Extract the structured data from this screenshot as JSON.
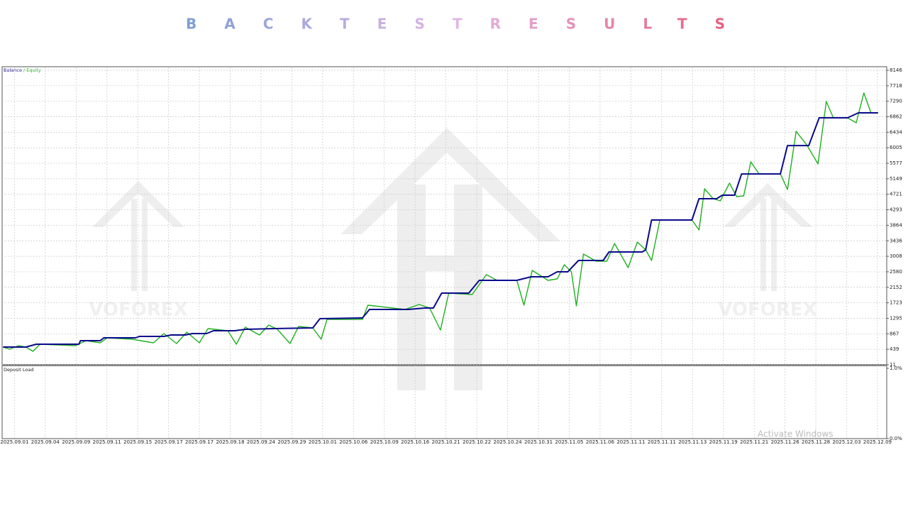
{
  "header": {
    "title": "BACKTESTRESULTS"
  },
  "chart_data": {
    "type": "line",
    "legend_separator": "/",
    "xlim": [
      -0.4,
      28.3
    ],
    "xticks": [
      {
        "value": 0,
        "label": "2025.09.01"
      },
      {
        "value": 1,
        "label": "2025.09.04"
      },
      {
        "value": 2,
        "label": "2025.09.09"
      },
      {
        "value": 3,
        "label": "2025.09.11"
      },
      {
        "value": 4,
        "label": "2025.09.15"
      },
      {
        "value": 5,
        "label": "2025.09.17"
      },
      {
        "value": 6,
        "label": "2025.09.17"
      },
      {
        "value": 7,
        "label": "2025.09.18"
      },
      {
        "value": 8,
        "label": "2025.09.24"
      },
      {
        "value": 9,
        "label": "2025.09.29"
      },
      {
        "value": 10,
        "label": "2025.10.01"
      },
      {
        "value": 11,
        "label": "2025.10.06"
      },
      {
        "value": 12,
        "label": "2025.10.09"
      },
      {
        "value": 13,
        "label": "2025.10.16"
      },
      {
        "value": 14,
        "label": "2025.10.21"
      },
      {
        "value": 15,
        "label": "2025.10.22"
      },
      {
        "value": 16,
        "label": "2025.10.24"
      },
      {
        "value": 17,
        "label": "2025.10.31"
      },
      {
        "value": 18,
        "label": "2025.11.05"
      },
      {
        "value": 19,
        "label": "2025.11.06"
      },
      {
        "value": 20,
        "label": "2025.11.11"
      },
      {
        "value": 21,
        "label": "2025.11.11"
      },
      {
        "value": 22,
        "label": "2025.11.13"
      },
      {
        "value": 23,
        "label": "2025.11.19"
      },
      {
        "value": 24,
        "label": "2025.11.21"
      },
      {
        "value": 25,
        "label": "2025.11.26"
      },
      {
        "value": 26,
        "label": "2025.11.28"
      },
      {
        "value": 27,
        "label": "2025.12.03"
      },
      {
        "value": 28,
        "label": "2025.12.09"
      }
    ],
    "ylim": [
      11,
      8146
    ],
    "yticks": [
      11,
      439,
      867,
      1295,
      1723,
      2152,
      2580,
      3008,
      3436,
      3864,
      4293,
      4721,
      5149,
      5577,
      6005,
      6434,
      6862,
      7290,
      7718,
      8146
    ],
    "grid": true,
    "series": [
      {
        "name": "Balance",
        "color": "#0a0a8c",
        "x": [
          -0.37,
          0.37,
          0.71,
          2.09,
          2.14,
          2.78,
          2.9,
          3.93,
          4.05,
          4.85,
          5.08,
          5.54,
          5.77,
          6.23,
          6.46,
          7.15,
          7.49,
          8.41,
          9.68,
          9.91,
          11.29,
          11.52,
          12.78,
          13.31,
          13.59,
          13.86,
          14.74,
          15.08,
          16.3,
          16.76,
          17.31,
          17.61,
          17.95,
          18.3,
          19.1,
          19.29,
          20.37,
          20.48,
          20.67,
          21.98,
          22.21,
          22.78,
          22.97,
          23.36,
          23.59,
          24.85,
          25.08,
          25.77,
          26.11,
          27.03,
          27.38,
          28.02
        ],
        "values": [
          501,
          501,
          579,
          579,
          677,
          677,
          756,
          756,
          795,
          795,
          834,
          834,
          873,
          873,
          952,
          952,
          991,
          1011,
          1030,
          1285,
          1305,
          1540,
          1540,
          1579,
          1579,
          1991,
          1991,
          2343,
          2343,
          2441,
          2441,
          2579,
          2579,
          2892,
          2892,
          3127,
          3127,
          3186,
          4009,
          4009,
          4597,
          4597,
          4695,
          4695,
          5283,
          5283,
          6067,
          6067,
          6832,
          6832,
          6969,
          6969
        ]
      },
      {
        "name": "Equity",
        "color": "#1fb01f",
        "x": [
          -0.37,
          -0.16,
          0.14,
          0.37,
          0.6,
          0.83,
          1.98,
          2.32,
          2.78,
          3.01,
          3.82,
          4.51,
          4.85,
          5.26,
          5.59,
          6.0,
          6.28,
          6.92,
          7.2,
          7.49,
          7.95,
          8.25,
          8.53,
          8.94,
          9.22,
          9.68,
          9.95,
          10.14,
          11.29,
          11.47,
          12.67,
          13.13,
          13.47,
          13.82,
          14.09,
          14.85,
          15.31,
          15.66,
          16.3,
          16.53,
          16.8,
          17.31,
          17.61,
          17.84,
          18.07,
          18.23,
          18.46,
          18.87,
          19.22,
          19.47,
          19.91,
          20.21,
          20.48,
          20.67,
          20.94,
          21.98,
          22.21,
          22.39,
          22.67,
          22.9,
          23.2,
          23.43,
          23.66,
          23.89,
          24.16,
          24.85,
          25.08,
          25.36,
          25.72,
          26.07,
          26.34,
          26.57,
          27.03,
          27.31,
          27.56,
          27.79,
          28.02
        ],
        "values": [
          501,
          442,
          540,
          501,
          383,
          579,
          540,
          677,
          619,
          756,
          717,
          619,
          873,
          599,
          913,
          619,
          1011,
          952,
          579,
          1050,
          834,
          1109,
          991,
          599,
          1070,
          1030,
          717,
          1265,
          1265,
          1657,
          1540,
          1677,
          1579,
          971,
          1991,
          1951,
          2500,
          2343,
          2343,
          1657,
          2618,
          2343,
          2383,
          2775,
          2579,
          1638,
          3069,
          2873,
          2873,
          3363,
          2696,
          3402,
          3186,
          2892,
          4009,
          4009,
          3735,
          4872,
          4597,
          4539,
          5029,
          4656,
          4676,
          5617,
          5283,
          5283,
          4852,
          6459,
          6067,
          5558,
          7283,
          6832,
          6832,
          6695,
          7518,
          6969,
          6969
        ]
      }
    ]
  },
  "deposit_load": {
    "title": "Deposit Load",
    "ylim": [
      0,
      1
    ],
    "yticks": [
      {
        "value": 1,
        "label": "1.0%"
      },
      {
        "value": 0,
        "label": "0.0%"
      }
    ]
  },
  "watermark": "VOFOREX",
  "os_overlay": "Activate Windows"
}
